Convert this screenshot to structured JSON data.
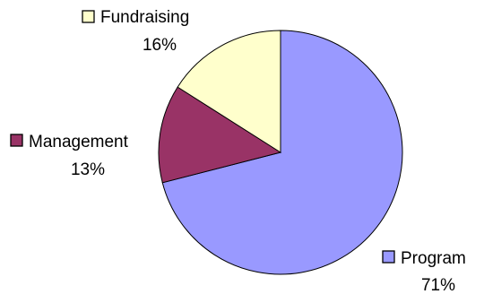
{
  "chart_data": {
    "type": "pie",
    "title": "",
    "slices": [
      {
        "name": "Program",
        "value": 71,
        "percent_label": "71%",
        "color": "#9999ff"
      },
      {
        "name": "Management",
        "value": 13,
        "percent_label": "13%",
        "color": "#993366"
      },
      {
        "name": "Fundraising",
        "value": 16,
        "percent_label": "16%",
        "color": "#ffffcc"
      }
    ],
    "start": "12 o'clock",
    "direction": "clockwise",
    "legend": "none",
    "labels": "category name with swatch and percentage next to each slice"
  }
}
